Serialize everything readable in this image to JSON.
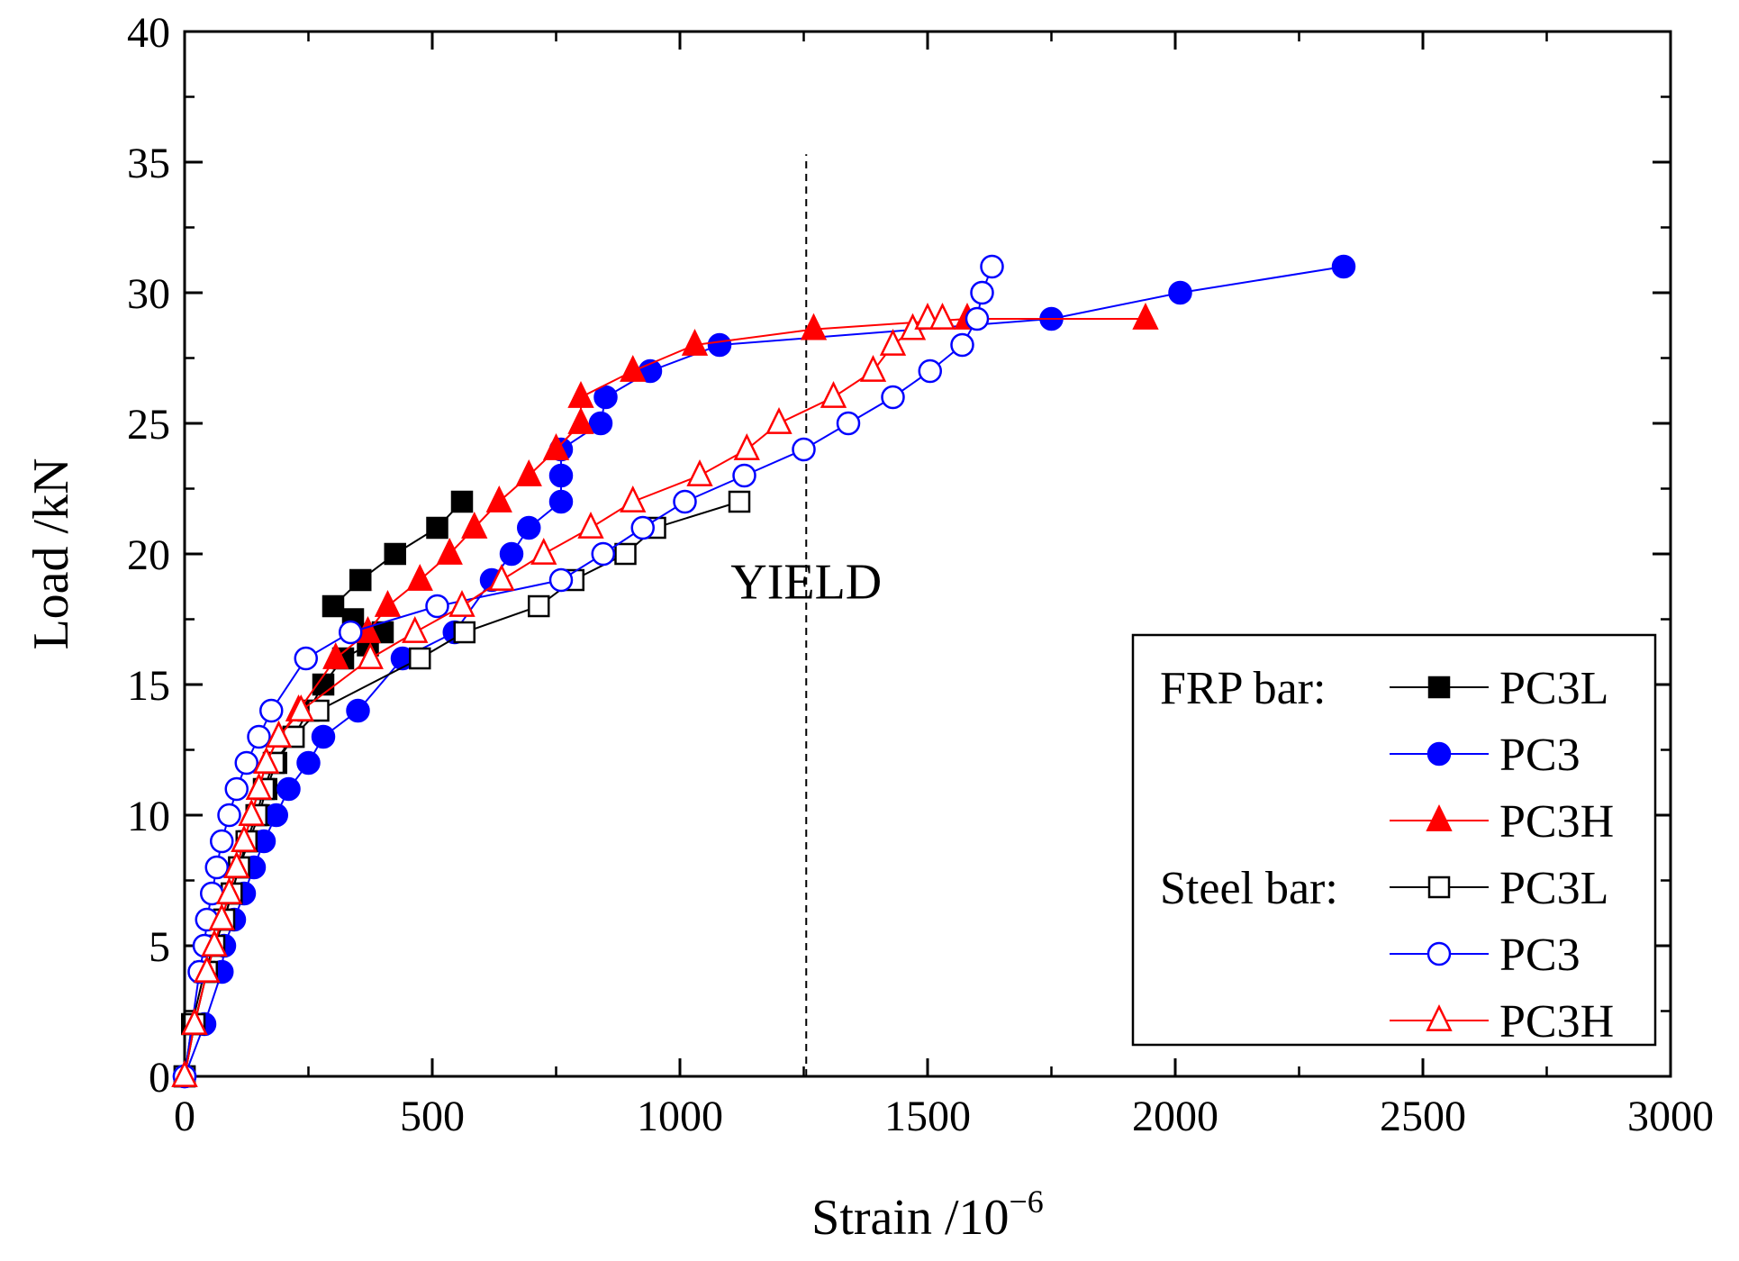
{
  "chart_data": {
    "type": "line",
    "title": "",
    "xlabel": "Strain /10",
    "xlabel_exponent": "−6",
    "ylabel": "Load /kN",
    "xlim": [
      0,
      3000
    ],
    "ylim": [
      0,
      40
    ],
    "xticks": [
      "0",
      "500",
      "1000",
      "1500",
      "2000",
      "2500",
      "3000"
    ],
    "yticks": [
      "0",
      "5",
      "10",
      "15",
      "20",
      "25",
      "30",
      "35",
      "40"
    ],
    "grid": false,
    "legend_position": "bottom-right",
    "legend_groups": [
      "FRP bar:",
      "Steel bar:"
    ],
    "annotations": [
      {
        "text": "YIELD",
        "x": 1255,
        "line_ymax": 35.3
      }
    ],
    "series": [
      {
        "name": "PC3L",
        "group": "FRP bar:",
        "color": "#000000",
        "marker": "square",
        "filled": true,
        "x": [
          0,
          15,
          40,
          60,
          80,
          95,
          110,
          130,
          150,
          165,
          185,
          220,
          250,
          280,
          320,
          370,
          400,
          340,
          300,
          355,
          425,
          510,
          560
        ],
        "y": [
          0,
          2,
          4,
          5,
          6,
          7,
          8,
          9,
          10,
          11,
          12,
          13,
          14,
          15,
          16,
          16.5,
          17,
          17.5,
          18,
          19,
          20,
          21,
          22
        ]
      },
      {
        "name": "PC3",
        "group": "FRP bar:",
        "color": "#0000ff",
        "marker": "circle",
        "filled": true,
        "x": [
          0,
          40,
          75,
          80,
          100,
          120,
          140,
          160,
          185,
          210,
          250,
          280,
          350,
          440,
          545,
          620,
          660,
          695,
          760,
          760,
          760,
          840,
          850,
          940,
          1080,
          1750,
          2010,
          2340
        ],
        "y": [
          0,
          2,
          4,
          5,
          6,
          7,
          8,
          9,
          10,
          11,
          12,
          13,
          14,
          16,
          17,
          19,
          20,
          21,
          22,
          23,
          24,
          25,
          26,
          27,
          28,
          29,
          30,
          31
        ]
      },
      {
        "name": "PC3H",
        "group": "FRP bar:",
        "color": "#ff0000",
        "marker": "triangle",
        "filled": true,
        "x": [
          0,
          20,
          45,
          60,
          75,
          90,
          105,
          120,
          135,
          150,
          165,
          190,
          230,
          305,
          370,
          410,
          475,
          535,
          585,
          635,
          695,
          750,
          800,
          800,
          905,
          1030,
          1270,
          1580,
          1940
        ],
        "y": [
          0,
          2,
          4,
          5,
          6,
          7,
          8,
          9,
          10,
          11,
          12,
          13,
          14,
          16,
          17,
          18,
          19,
          20,
          21,
          22,
          23,
          24,
          25,
          26,
          27,
          28,
          28.6,
          29,
          29
        ]
      },
      {
        "name": "PC3L",
        "group": "Steel bar:",
        "color": "#000000",
        "marker": "square",
        "filled": false,
        "x": [
          0,
          20,
          45,
          60,
          80,
          95,
          110,
          125,
          145,
          160,
          180,
          220,
          270,
          475,
          565,
          715,
          785,
          890,
          950,
          1120
        ],
        "y": [
          0,
          2,
          4,
          5,
          6,
          7,
          8,
          9,
          10,
          11,
          12,
          13,
          14,
          16,
          17,
          18,
          19,
          20,
          21,
          22
        ]
      },
      {
        "name": "PC3",
        "group": "Steel bar:",
        "color": "#0000ff",
        "marker": "circle",
        "filled": false,
        "x": [
          0,
          30,
          40,
          45,
          55,
          65,
          75,
          90,
          105,
          125,
          150,
          175,
          245,
          335,
          510,
          760,
          845,
          925,
          1010,
          1130,
          1250,
          1340,
          1430,
          1505,
          1570,
          1600,
          1610,
          1630
        ],
        "y": [
          0,
          4,
          5,
          6,
          7,
          8,
          9,
          10,
          11,
          12,
          13,
          14,
          16,
          17,
          18,
          19,
          20,
          21,
          22,
          23,
          24,
          25,
          26,
          27,
          28,
          29,
          30,
          31
        ]
      },
      {
        "name": "PC3H",
        "group": "Steel bar:",
        "color": "#ff0000",
        "marker": "triangle",
        "filled": false,
        "x": [
          0,
          20,
          45,
          60,
          75,
          90,
          105,
          120,
          135,
          150,
          165,
          190,
          235,
          375,
          465,
          560,
          640,
          725,
          820,
          905,
          1040,
          1135,
          1200,
          1310,
          1390,
          1430,
          1470,
          1500,
          1530
        ],
        "y": [
          0,
          2,
          4,
          5,
          6,
          7,
          8,
          9,
          10,
          11,
          12,
          13,
          14,
          16,
          17,
          18,
          19,
          20,
          21,
          22,
          23,
          24,
          25,
          26,
          27,
          28,
          28.6,
          29,
          29
        ]
      }
    ]
  }
}
